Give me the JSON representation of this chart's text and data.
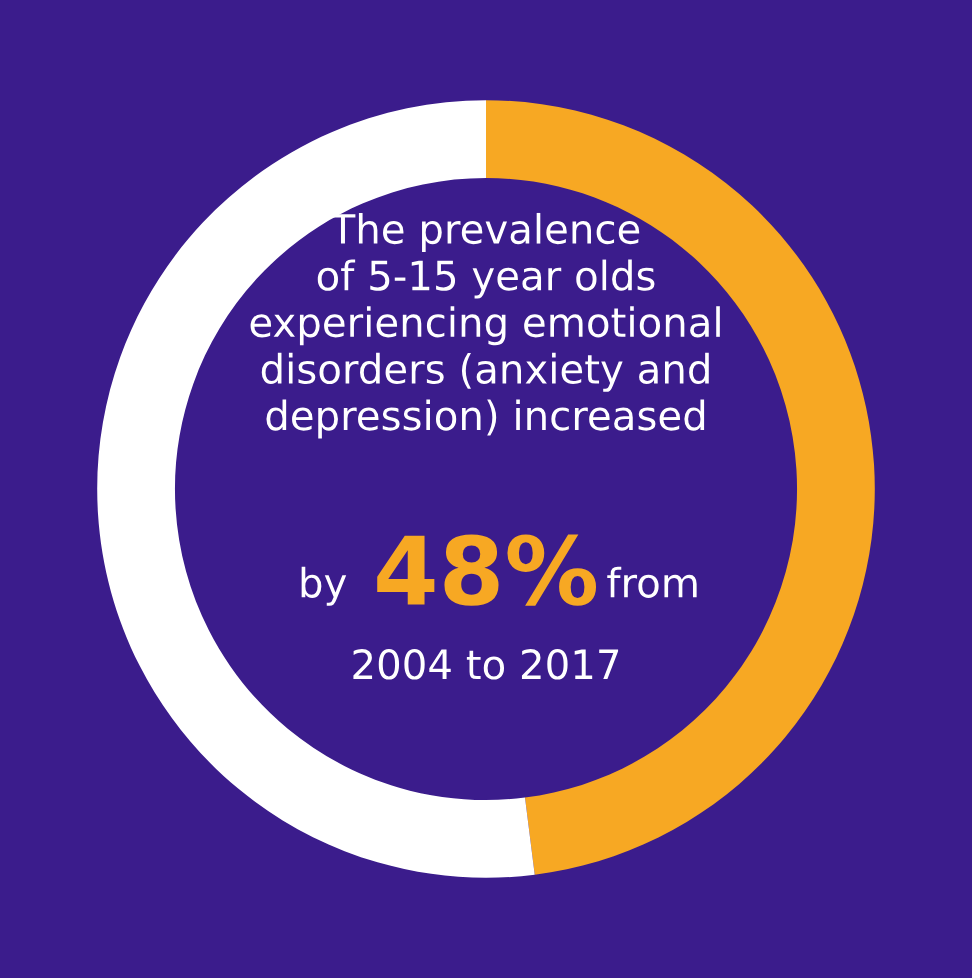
{
  "chart_data": {
    "type": "donut",
    "title": "The prevalence\nof 5-15 year olds\nexperiencing emotional\ndisorders (anxiety and\ndepression) increased",
    "categories": [
      null,
      null
    ],
    "values": [
      48,
      52
    ],
    "colors": [
      "#f7a823",
      "#ffffff"
    ],
    "value_labels": [
      "48%",
      null
    ],
    "annotations": [
      "by",
      "from",
      "2004 to 2017"
    ]
  }
}
